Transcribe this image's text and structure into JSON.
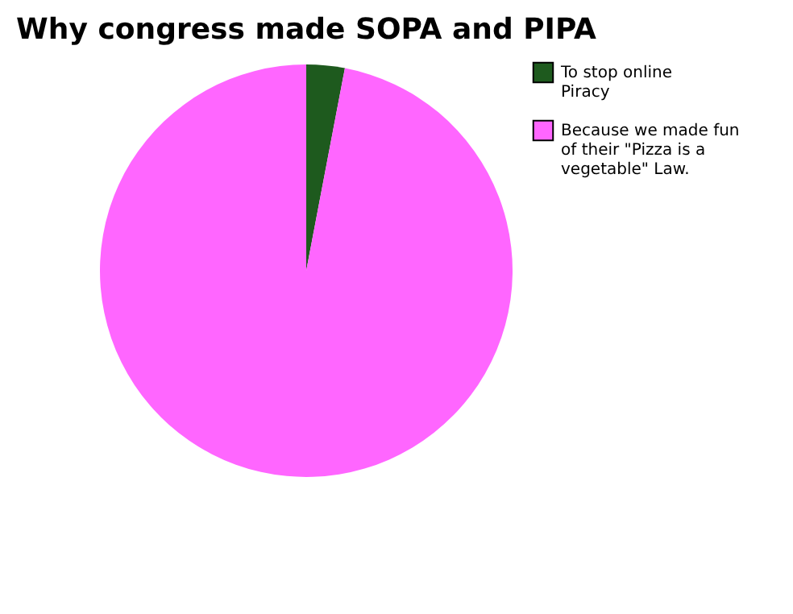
{
  "chart_data": {
    "type": "pie",
    "title": "Why congress made SOPA and PIPA",
    "categories": [
      "To stop online Piracy",
      "Because we made fun of their \"Pizza is a vegetable\" Law."
    ],
    "values": [
      3,
      97
    ],
    "colors": [
      "#1e5a1e",
      "#ff66ff"
    ],
    "legend": "right"
  }
}
